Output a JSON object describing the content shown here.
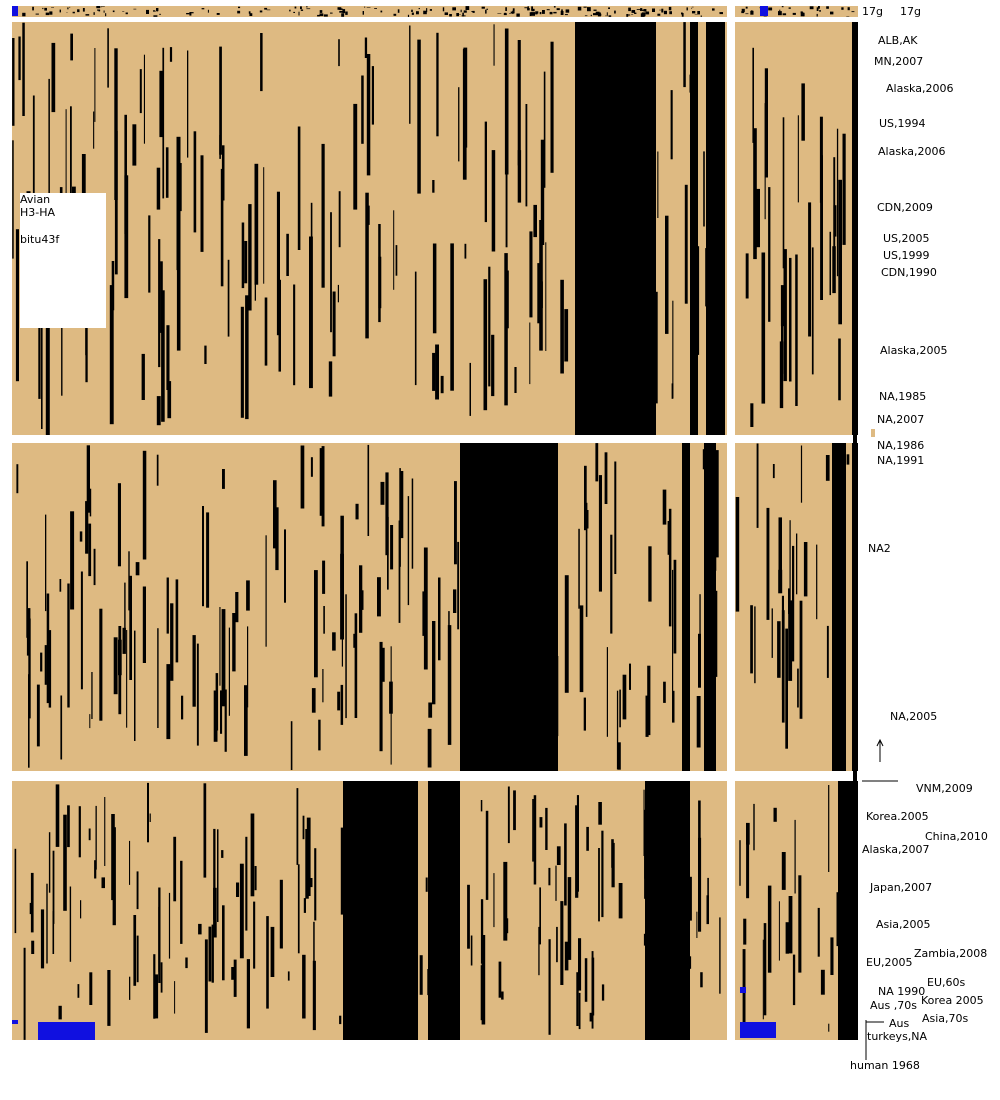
{
  "header": {
    "top_labels": [
      "17g",
      "17g"
    ]
  },
  "legend_box": {
    "lines": [
      "Avian",
      "H3-HA",
      "bitu43f"
    ]
  },
  "labels": [
    "ALB,AK",
    "MN,2007",
    "Alaska,2006",
    "US,1994",
    "Alaska,2006",
    "CDN,2009",
    "US,2005",
    "US,1999",
    "CDN,1990",
    "Alaska,2005",
    "NA,1985",
    "NA,2007",
    "NA,1986",
    "NA,1991",
    "NA2",
    "NA,2005",
    "VNM,2009",
    "Korea.2005",
    "China,2010",
    "Alaska,2007",
    "Japan,2007",
    "Asia,2005",
    "Zambia,2008",
    "EU,2005",
    "EU,60s",
    "NA 1990",
    "Korea 2005",
    "Aus ,70s",
    "Asia,70s",
    "Aus",
    "turkeys,NA",
    "human 1968"
  ]
}
